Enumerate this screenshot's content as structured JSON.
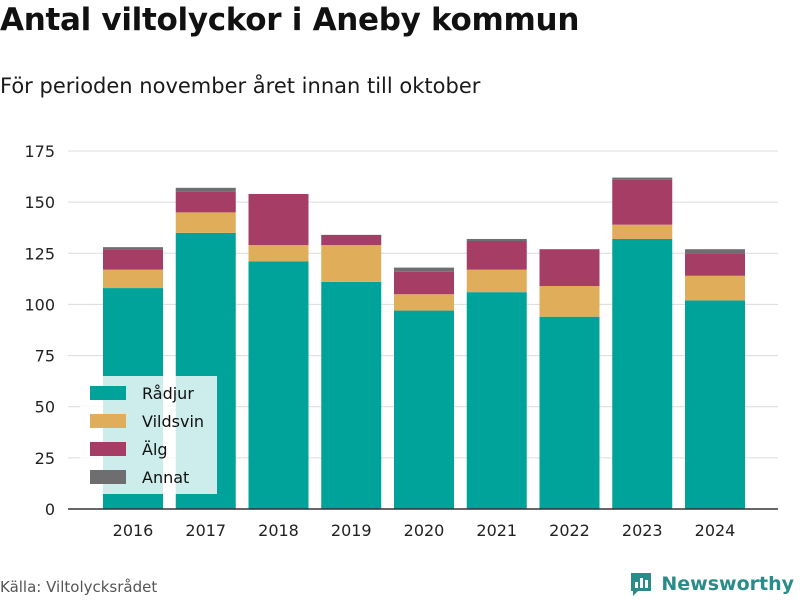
{
  "title": "Antal viltolyckor i Aneby kommun",
  "subtitle": "För perioden november året innan till oktober",
  "source": "Källa: Viltolycksrådet",
  "brand": "Newsworthy",
  "colors": {
    "Rådjur": "#00a39a",
    "Vildsvin": "#e0ad5a",
    "Älg": "#a63d65",
    "Annat": "#6e6e70",
    "brand": "#2a8c8a"
  },
  "chart_data": {
    "type": "bar",
    "stacked": true,
    "categories": [
      "2016",
      "2017",
      "2018",
      "2019",
      "2020",
      "2021",
      "2022",
      "2023",
      "2024"
    ],
    "series": [
      {
        "name": "Rådjur",
        "values": [
          108,
          135,
          121,
          111,
          97,
          106,
          94,
          132,
          102
        ]
      },
      {
        "name": "Vildsvin",
        "values": [
          9,
          10,
          8,
          18,
          8,
          11,
          15,
          7,
          12
        ]
      },
      {
        "name": "Älg",
        "values": [
          10,
          10,
          25,
          5,
          11,
          14,
          18,
          22,
          11
        ]
      },
      {
        "name": "Annat",
        "values": [
          1,
          2,
          0,
          0,
          2,
          1,
          0,
          1,
          2
        ]
      }
    ],
    "ylim": [
      0,
      175
    ],
    "yticks": [
      0,
      25,
      50,
      75,
      100,
      125,
      150,
      175
    ],
    "grid": true,
    "legend": "bottom-left"
  }
}
